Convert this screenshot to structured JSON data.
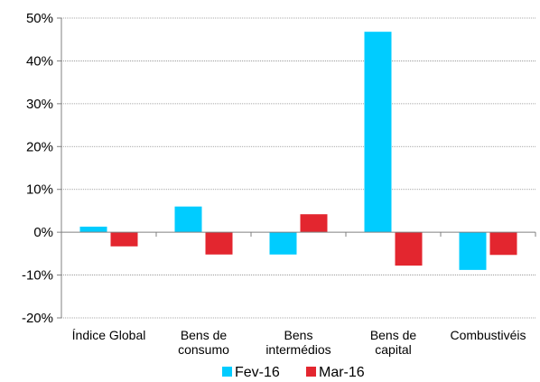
{
  "chart_data": {
    "type": "bar",
    "categories": [
      [
        "Índice Global"
      ],
      [
        "Bens de",
        "consumo"
      ],
      [
        "Bens",
        "intermédios"
      ],
      [
        "Bens de",
        "capital"
      ],
      [
        "Combustivéis"
      ]
    ],
    "series": [
      {
        "name": "Fev-16",
        "color": "#00ccff",
        "values": [
          1.3,
          6.0,
          -5.2,
          46.8,
          -8.8
        ]
      },
      {
        "name": "Mar-16",
        "color": "#e3262f",
        "values": [
          -3.3,
          -5.2,
          4.2,
          -7.8,
          -5.3
        ]
      }
    ],
    "ylim": [
      -20,
      50
    ],
    "yticks": [
      -20,
      -10,
      0,
      10,
      20,
      30,
      40,
      50
    ],
    "ytick_labels": [
      "-20%",
      "-10%",
      "0%",
      "10%",
      "20%",
      "30%",
      "40%",
      "50%"
    ],
    "grid": true,
    "legend_position": "bottom"
  }
}
